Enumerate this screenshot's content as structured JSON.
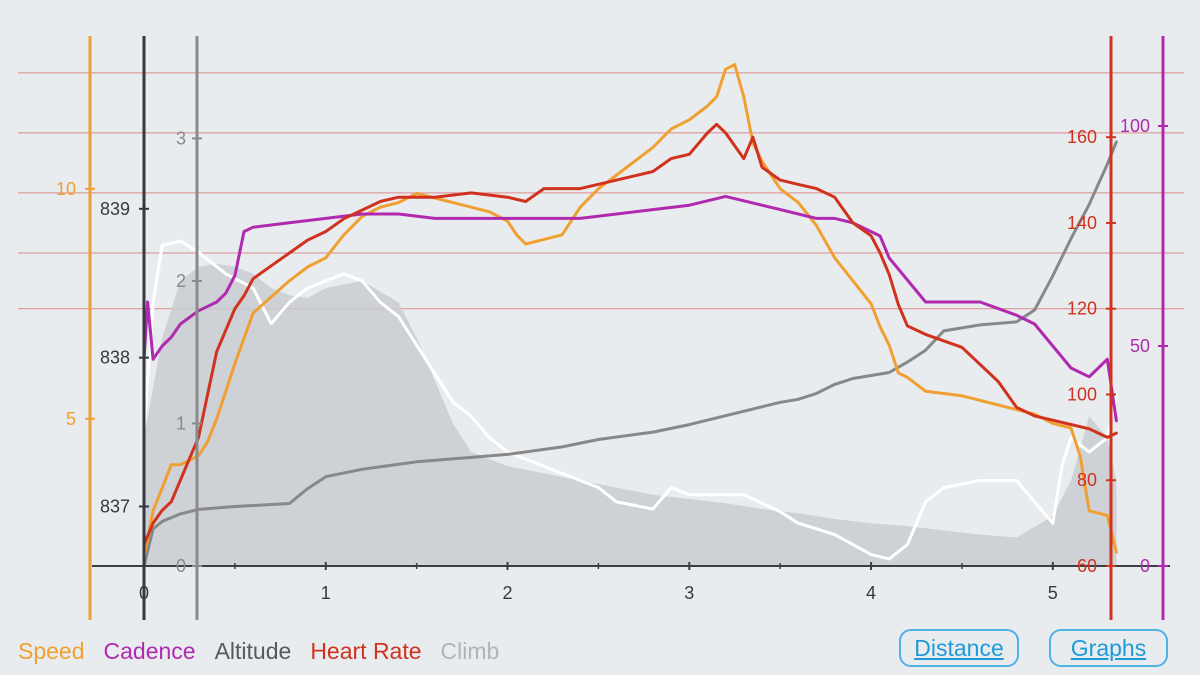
{
  "colors": {
    "speed": "#f0a030",
    "cadence": "#b02ab0",
    "altitude": "#353840",
    "altitude_line": "#888888",
    "heart_rate": "#d0321e",
    "climb": "#ffffff",
    "climb_area": "#c9ccd1",
    "legend_climb": "#b4b4b4",
    "hr_zone": "#dc8a8a",
    "button": "#1f9ad8"
  },
  "legend": {
    "speed": "Speed",
    "cadence": "Cadence",
    "altitude": "Altitude",
    "heart_rate": "Heart Rate",
    "climb": "Climb"
  },
  "buttons": {
    "distance": "Distance",
    "graphs": "Graphs"
  },
  "chart_data": {
    "type": "line",
    "x_axis": {
      "label": "Distance",
      "range": [
        0,
        5.5
      ],
      "ticks": [
        0,
        1,
        2,
        3,
        4,
        5
      ]
    },
    "axes": {
      "speed": {
        "range": [
          1.8,
          12.8
        ],
        "ticks": [
          5,
          10
        ]
      },
      "altitude": {
        "range": [
          836.6,
          840.0
        ],
        "ticks": [
          837,
          838,
          839
        ]
      },
      "climb": {
        "range": [
          0,
          3.55
        ],
        "ticks": [
          0,
          1,
          2,
          3
        ]
      },
      "heart_rate": {
        "range": [
          60,
          178
        ],
        "ticks": [
          60,
          80,
          100,
          120,
          140,
          160
        ]
      },
      "cadence": {
        "range": [
          0,
          115
        ],
        "ticks": [
          0,
          50,
          100
        ]
      }
    },
    "hr_zone_lines": [
      120,
      133,
      147,
      161,
      175
    ],
    "series": [
      {
        "name": "Climb (fill)",
        "axis": "climb",
        "x": [
          0,
          0.1,
          0.2,
          0.3,
          0.4,
          0.5,
          0.6,
          0.7,
          0.8,
          0.9,
          1.0,
          1.2,
          1.4,
          1.5,
          1.6,
          1.7,
          1.8,
          2.0,
          2.2,
          2.4,
          2.6,
          2.8,
          3.0,
          3.2,
          3.4,
          3.6,
          3.8,
          4.0,
          4.2,
          4.4,
          4.6,
          4.8,
          5.0,
          5.1,
          5.2,
          5.3,
          5.35
        ],
        "values": [
          0.9,
          1.6,
          2.0,
          2.1,
          2.12,
          2.1,
          2.05,
          1.95,
          1.9,
          1.88,
          1.95,
          2.0,
          1.85,
          1.6,
          1.3,
          1.0,
          0.8,
          0.7,
          0.65,
          0.6,
          0.55,
          0.5,
          0.47,
          0.44,
          0.4,
          0.37,
          0.33,
          0.3,
          0.28,
          0.25,
          0.22,
          0.2,
          0.35,
          0.6,
          1.05,
          0.9,
          0.6
        ]
      },
      {
        "name": "Climb",
        "axis": "climb",
        "x": [
          0,
          0.05,
          0.1,
          0.2,
          0.3,
          0.45,
          0.6,
          0.7,
          0.8,
          0.9,
          1.0,
          1.1,
          1.2,
          1.3,
          1.4,
          1.5,
          1.6,
          1.7,
          1.8,
          1.9,
          2.0,
          2.1,
          2.2,
          2.3,
          2.4,
          2.5,
          2.6,
          2.8,
          2.9,
          3.0,
          3.1,
          3.3,
          3.5,
          3.6,
          3.8,
          3.9,
          4.0,
          4.1,
          4.15,
          4.2,
          4.3,
          4.4,
          4.6,
          4.8,
          4.9,
          5.0,
          5.05,
          5.1,
          5.2,
          5.3,
          5.35
        ],
        "values": [
          0.95,
          1.85,
          2.25,
          2.28,
          2.2,
          2.05,
          1.95,
          1.7,
          1.85,
          1.95,
          2.0,
          2.05,
          2.0,
          1.85,
          1.75,
          1.55,
          1.35,
          1.15,
          1.05,
          0.9,
          0.8,
          0.75,
          0.7,
          0.65,
          0.6,
          0.55,
          0.45,
          0.4,
          0.55,
          0.5,
          0.5,
          0.5,
          0.38,
          0.3,
          0.22,
          0.15,
          0.08,
          0.05,
          0.1,
          0.15,
          0.45,
          0.55,
          0.6,
          0.6,
          0.45,
          0.3,
          0.7,
          0.9,
          0.8,
          0.9,
          1.2
        ]
      },
      {
        "name": "Altitude",
        "axis": "altitude",
        "x": [
          0,
          0.05,
          0.1,
          0.2,
          0.3,
          0.5,
          0.8,
          0.9,
          1.0,
          1.2,
          1.5,
          1.8,
          2.0,
          2.3,
          2.5,
          2.8,
          3.0,
          3.5,
          3.6,
          3.7,
          3.8,
          3.9,
          4.0,
          4.1,
          4.2,
          4.3,
          4.4,
          4.6,
          4.8,
          4.9,
          5.0,
          5.1,
          5.2,
          5.3,
          5.35
        ],
        "values": [
          836.6,
          836.85,
          836.9,
          836.95,
          836.98,
          837.0,
          837.02,
          837.12,
          837.2,
          837.25,
          837.3,
          837.33,
          837.35,
          837.4,
          837.45,
          837.5,
          837.55,
          837.7,
          837.72,
          837.76,
          837.82,
          837.86,
          837.88,
          837.9,
          837.97,
          838.05,
          838.18,
          838.22,
          838.24,
          838.32,
          838.55,
          838.8,
          839.03,
          839.3,
          839.45
        ]
      },
      {
        "name": "Speed",
        "axis": "speed",
        "x": [
          0,
          0.05,
          0.1,
          0.15,
          0.2,
          0.3,
          0.35,
          0.4,
          0.5,
          0.6,
          0.8,
          0.9,
          1.0,
          1.1,
          1.2,
          1.3,
          1.4,
          1.5,
          1.6,
          1.8,
          1.9,
          2.0,
          2.05,
          2.1,
          2.2,
          2.3,
          2.4,
          2.5,
          2.6,
          2.7,
          2.8,
          2.9,
          3.0,
          3.1,
          3.15,
          3.2,
          3.25,
          3.3,
          3.35,
          3.4,
          3.5,
          3.6,
          3.7,
          3.8,
          3.9,
          4.0,
          4.05,
          4.1,
          4.15,
          4.2,
          4.3,
          4.5,
          4.7,
          4.9,
          5.0,
          5.1,
          5.15,
          5.2,
          5.3,
          5.35
        ],
        "values": [
          2,
          3,
          3.5,
          4,
          4,
          4.2,
          4.5,
          5,
          6.2,
          7.3,
          8,
          8.3,
          8.5,
          9.0,
          9.4,
          9.6,
          9.7,
          9.9,
          9.8,
          9.6,
          9.5,
          9.3,
          9.0,
          8.8,
          8.9,
          9.0,
          9.6,
          10.0,
          10.3,
          10.6,
          10.9,
          11.3,
          11.5,
          11.8,
          12.0,
          12.6,
          12.7,
          12.0,
          11.0,
          10.6,
          10.0,
          9.7,
          9.2,
          8.5,
          8.0,
          7.5,
          7.0,
          6.6,
          6.0,
          5.9,
          5.6,
          5.5,
          5.3,
          5.1,
          4.9,
          4.8,
          4.2,
          3.0,
          2.9,
          2.1
        ]
      },
      {
        "name": "Cadence",
        "axis": "cadence",
        "x": [
          0,
          0.02,
          0.05,
          0.1,
          0.15,
          0.2,
          0.3,
          0.4,
          0.45,
          0.5,
          0.55,
          0.6,
          0.8,
          1.0,
          1.2,
          1.4,
          1.6,
          1.8,
          2.0,
          2.2,
          2.4,
          2.6,
          2.8,
          3.0,
          3.1,
          3.2,
          3.3,
          3.4,
          3.5,
          3.6,
          3.7,
          3.8,
          3.9,
          4.0,
          4.05,
          4.1,
          4.2,
          4.3,
          4.4,
          4.6,
          4.8,
          4.9,
          5.0,
          5.1,
          5.2,
          5.25,
          5.3,
          5.35
        ],
        "values": [
          47,
          60,
          47,
          50,
          52,
          55,
          58,
          60,
          62,
          66,
          76,
          77,
          78,
          79,
          80,
          80,
          79,
          79,
          79,
          79,
          79,
          80,
          81,
          82,
          83,
          84,
          83,
          82,
          81,
          80,
          79,
          79,
          78,
          76,
          75,
          70,
          65,
          60,
          60,
          60,
          57,
          55,
          50,
          45,
          43,
          45,
          47,
          33
        ]
      },
      {
        "name": "Heart Rate",
        "axis": "heart_rate",
        "x": [
          0,
          0.05,
          0.1,
          0.15,
          0.2,
          0.25,
          0.3,
          0.35,
          0.4,
          0.45,
          0.5,
          0.55,
          0.6,
          0.7,
          0.8,
          0.9,
          1.0,
          1.1,
          1.2,
          1.3,
          1.4,
          1.6,
          1.8,
          2.0,
          2.1,
          2.2,
          2.4,
          2.6,
          2.8,
          2.9,
          3.0,
          3.1,
          3.15,
          3.2,
          3.25,
          3.3,
          3.35,
          3.4,
          3.5,
          3.6,
          3.7,
          3.8,
          3.9,
          4.0,
          4.05,
          4.1,
          4.15,
          4.2,
          4.3,
          4.5,
          4.7,
          4.8,
          4.9,
          5.0,
          5.1,
          5.2,
          5.3,
          5.35
        ],
        "values": [
          65,
          70,
          73,
          75,
          80,
          85,
          90,
          100,
          110,
          115,
          120,
          123,
          127,
          130,
          133,
          136,
          138,
          141,
          143,
          145,
          146,
          146,
          147,
          146,
          145,
          148,
          148,
          150,
          152,
          155,
          156,
          161,
          163,
          161,
          158,
          155,
          160,
          153,
          150,
          149,
          148,
          146,
          140,
          137,
          133,
          128,
          121,
          116,
          114,
          111,
          103,
          97,
          95,
          94,
          93,
          92,
          90,
          91
        ]
      }
    ]
  }
}
